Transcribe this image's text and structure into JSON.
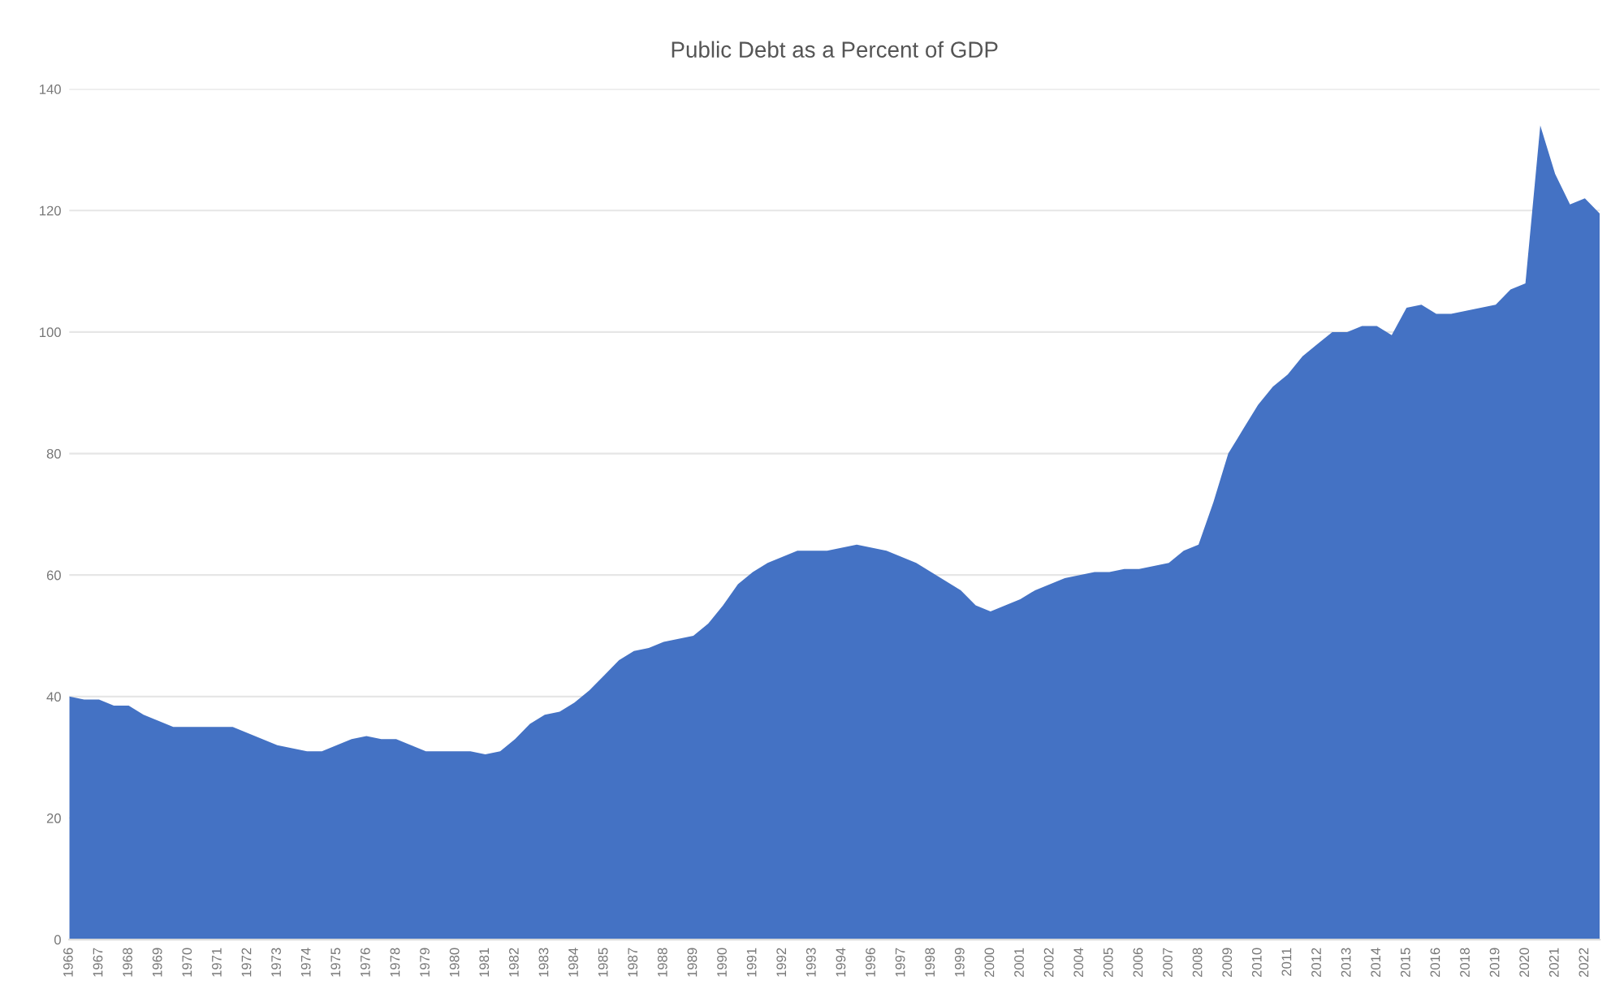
{
  "chart_data": {
    "type": "area",
    "title": "Public Debt as a Percent of GDP",
    "categories": [
      "1966",
      null,
      "1967",
      null,
      "1968",
      null,
      "1969",
      null,
      "1970",
      null,
      "1971",
      null,
      "1972",
      null,
      "1973",
      null,
      "1974",
      null,
      "1975",
      null,
      "1976",
      null,
      "1978",
      null,
      "1979",
      null,
      "1980",
      null,
      "1981",
      null,
      "1982",
      null,
      "1983",
      null,
      "1984",
      null,
      "1985",
      null,
      "1987",
      null,
      "1988",
      null,
      "1989",
      null,
      "1990",
      null,
      "1991",
      null,
      "1992",
      null,
      "1993",
      null,
      "1994",
      null,
      "1996",
      null,
      "1997",
      null,
      "1998",
      null,
      "1999",
      null,
      "2000",
      null,
      "2001",
      null,
      "2002",
      null,
      "2004",
      null,
      "2005",
      null,
      "2006",
      null,
      "2007",
      null,
      "2008",
      null,
      "2009",
      null,
      "2010",
      null,
      "2011",
      null,
      "2012",
      null,
      "2013",
      null,
      "2014",
      null,
      "2015",
      null,
      "2016",
      null,
      "2018",
      null,
      "2019",
      null,
      "2020",
      null,
      "2021",
      null,
      "2022",
      null
    ],
    "values": [
      40,
      39.5,
      39.5,
      38.5,
      38.5,
      37,
      36,
      35,
      35,
      35,
      35,
      35,
      34,
      33,
      32,
      31.5,
      31,
      31,
      32,
      33,
      33.5,
      33,
      33,
      32,
      31,
      31,
      31,
      31,
      30.5,
      31,
      33,
      35.5,
      37,
      37.5,
      39,
      41,
      43.5,
      46,
      47.5,
      48,
      49,
      49.5,
      50,
      52,
      55,
      58.5,
      60.5,
      62,
      63,
      64,
      64,
      64,
      64.5,
      65,
      64.5,
      64,
      63,
      62,
      60.5,
      59,
      57.5,
      55,
      54,
      55,
      56,
      57.5,
      58.5,
      59.5,
      60,
      60.5,
      60.5,
      61,
      61,
      61.5,
      62,
      64,
      65,
      72,
      80,
      84,
      88,
      91,
      93,
      96,
      98,
      100,
      100,
      101,
      101,
      99.5,
      104,
      104.5,
      103,
      103,
      103.5,
      104,
      104.5,
      107,
      108,
      134,
      126,
      121,
      122,
      119.5
    ],
    "color": "#4472c4",
    "ylim": [
      0,
      140
    ],
    "yticks": [
      0,
      20,
      40,
      60,
      80,
      100,
      120,
      140
    ],
    "grid": "y"
  }
}
